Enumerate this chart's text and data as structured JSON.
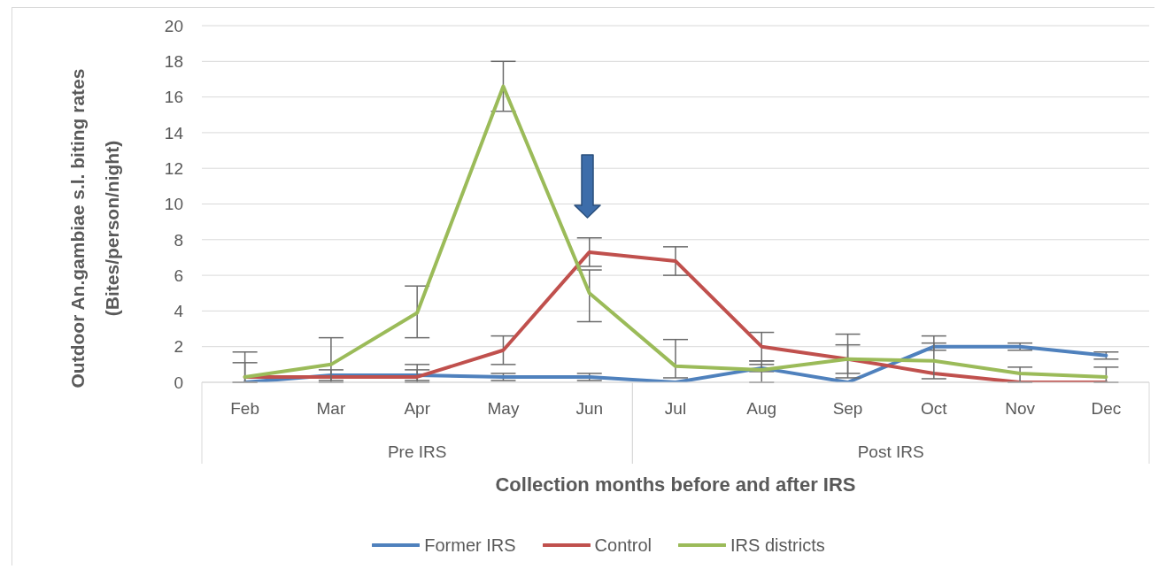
{
  "chart_data": {
    "type": "line",
    "xlabel": "Collection months before and after IRS",
    "ylabel": "Outdoor An.gambiae s.l. biting rates (Bites/person/night)",
    "categories": [
      "Feb",
      "Mar",
      "Apr",
      "May",
      "Jun",
      "Jul",
      "Aug",
      "Sep",
      "Oct",
      "Nov",
      "Dec"
    ],
    "series": [
      {
        "name": "Former IRS",
        "color": "#4f81bd",
        "values": [
          0,
          0.4,
          0.4,
          0.3,
          0.3,
          0,
          0.8,
          0,
          2,
          2,
          1.5
        ],
        "errors": [
          null,
          [
            0.1,
            0.7
          ],
          [
            0.1,
            0.7
          ],
          [
            0.1,
            0.5
          ],
          [
            0.1,
            0.5
          ],
          null,
          [
            0.6,
            1.0
          ],
          null,
          [
            1.8,
            2.6
          ],
          [
            1.8,
            2.2
          ],
          [
            1.3,
            1.7
          ]
        ]
      },
      {
        "name": "Control",
        "color": "#c0504d",
        "values": [
          0.3,
          0.3,
          0.3,
          1.8,
          7.3,
          6.8,
          2,
          1.3,
          0.5,
          0,
          0
        ],
        "errors": [
          [
            0,
            1.1
          ],
          null,
          [
            0,
            1.0
          ],
          [
            1.0,
            2.6
          ],
          [
            6.5,
            8.1
          ],
          [
            6.0,
            7.6
          ],
          [
            1.2,
            2.8
          ],
          [
            0.5,
            2.1
          ],
          null,
          null,
          null
        ]
      },
      {
        "name": "IRS districts",
        "color": "#9bbb59",
        "values": [
          0.3,
          1,
          3.9,
          16.6,
          5,
          0.9,
          0.7,
          1.3,
          1.2,
          0.5,
          0.3
        ],
        "errors": [
          [
            0,
            1.7
          ],
          [
            0,
            2.5
          ],
          [
            2.5,
            5.4
          ],
          [
            15.2,
            18.0
          ],
          [
            3.4,
            6.3
          ],
          [
            0.25,
            2.4
          ],
          [
            0,
            1.2
          ],
          [
            0.25,
            2.7
          ],
          [
            0.2,
            2.2
          ],
          [
            0,
            0.85
          ],
          [
            0,
            0.85
          ]
        ]
      }
    ],
    "ylim": [
      0,
      20
    ],
    "yticks": [
      0,
      2,
      4,
      6,
      8,
      10,
      12,
      14,
      16,
      18,
      20
    ],
    "grid": "y",
    "legend": "bottom",
    "annotations": [
      "Pre IRS",
      "Post IRS"
    ]
  }
}
